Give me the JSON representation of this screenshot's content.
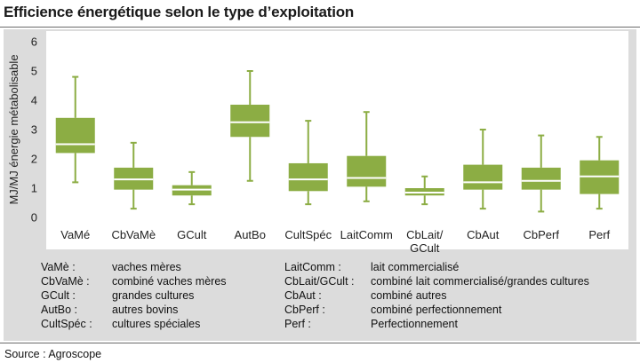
{
  "title": "Efficience énergétique selon le type d’exploitation",
  "source": "Source : Agroscope",
  "chart_data": {
    "type": "boxplot",
    "ylabel": "MJ/MJ énergie métabolisable",
    "xlabel": "",
    "ylim": [
      0,
      6
    ],
    "yticks": [
      0,
      1,
      2,
      3,
      4,
      5,
      6
    ],
    "grid": false,
    "color": "#8cad44",
    "median_color": "#ffffff",
    "categories": [
      {
        "label": "VaMé",
        "min": 1.2,
        "q1": 2.2,
        "median": 2.5,
        "q3": 3.4,
        "max": 4.8
      },
      {
        "label": "CbVaMè",
        "min": 0.3,
        "q1": 0.95,
        "median": 1.3,
        "q3": 1.7,
        "max": 2.55
      },
      {
        "label": "GCult",
        "min": 0.45,
        "q1": 0.75,
        "median": 0.95,
        "q3": 1.1,
        "max": 1.55
      },
      {
        "label": "AutBo",
        "min": 1.25,
        "q1": 2.75,
        "median": 3.25,
        "q3": 3.85,
        "max": 5.0
      },
      {
        "label": "CultSpéc",
        "min": 0.45,
        "q1": 0.9,
        "median": 1.3,
        "q3": 1.85,
        "max": 3.3
      },
      {
        "label": "LaitComm",
        "min": 0.55,
        "q1": 1.05,
        "median": 1.35,
        "q3": 2.1,
        "max": 3.6
      },
      {
        "label": "CbLait/\nGCult",
        "min": 0.45,
        "q1": 0.75,
        "median": 0.85,
        "q3": 1.0,
        "max": 1.4
      },
      {
        "label": "CbAut",
        "min": 0.3,
        "q1": 0.95,
        "median": 1.2,
        "q3": 1.8,
        "max": 3.0
      },
      {
        "label": "CbPerf",
        "min": 0.2,
        "q1": 0.95,
        "median": 1.25,
        "q3": 1.7,
        "max": 2.8
      },
      {
        "label": "Perf",
        "min": 0.3,
        "q1": 0.8,
        "median": 1.4,
        "q3": 1.95,
        "max": 2.75
      }
    ]
  },
  "legend": {
    "left": [
      {
        "abbr": "VaMè :",
        "desc": "vaches mères"
      },
      {
        "abbr": "CbVaMè :",
        "desc": "combiné vaches mères"
      },
      {
        "abbr": "GCult :",
        "desc": "grandes cultures"
      },
      {
        "abbr": "AutBo :",
        "desc": "autres bovins"
      },
      {
        "abbr": "CultSpéc :",
        "desc": "cultures spéciales"
      }
    ],
    "right": [
      {
        "abbr": "LaitComm :",
        "desc": "lait commercialisé"
      },
      {
        "abbr": "CbLait/GCult :",
        "desc": "combiné lait commercialisé/grandes cultures"
      },
      {
        "abbr": "CbAut :",
        "desc": "combiné autres"
      },
      {
        "abbr": "CbPerf :",
        "desc": "combiné perfectionnement"
      },
      {
        "abbr": "Perf :",
        "desc": "Perfectionnement"
      }
    ]
  }
}
